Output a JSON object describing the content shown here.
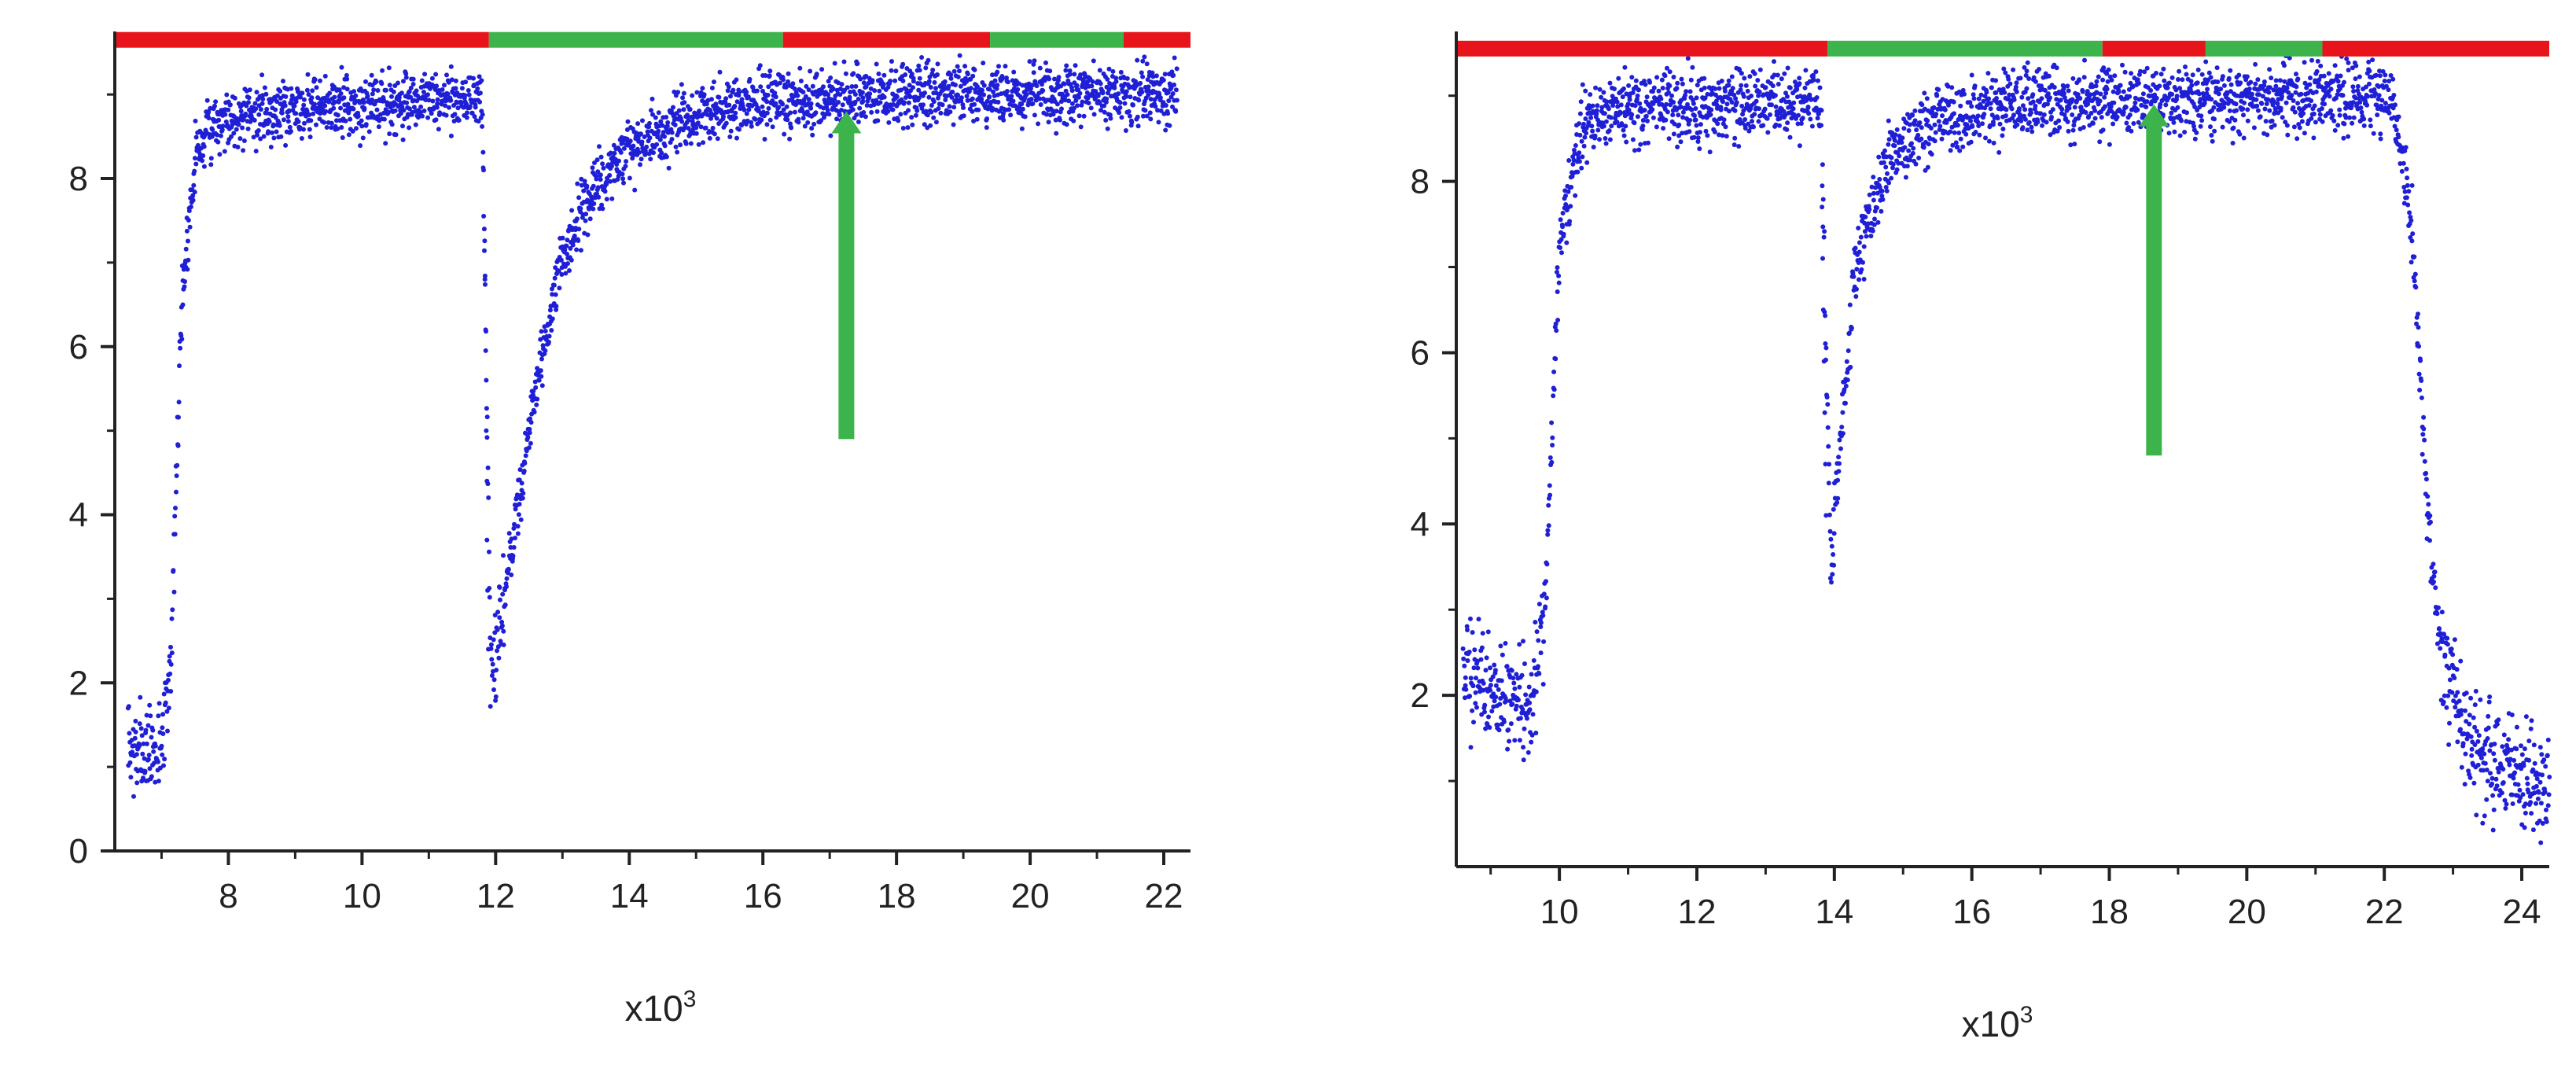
{
  "colors": {
    "points": "#1f1fd6",
    "red": "#e8141c",
    "green": "#3cb44b",
    "axis": "#222222"
  },
  "chart_data": [
    {
      "type": "scatter",
      "title": "",
      "xlabel": "x10",
      "xlabel_exponent": "3",
      "ylabel": "",
      "xlim": [
        6.3,
        22.4
      ],
      "ylim": [
        0,
        9.75
      ],
      "xticks": [
        8,
        10,
        12,
        14,
        16,
        18,
        20,
        22
      ],
      "yticks": [
        0,
        2,
        4,
        6,
        8
      ],
      "grid": false,
      "legend": "none",
      "series_shape": [
        [
          6.5,
          1.15
        ],
        [
          7.0,
          1.2
        ],
        [
          7.15,
          2.5
        ],
        [
          7.3,
          6.5
        ],
        [
          7.5,
          8.3
        ],
        [
          7.8,
          8.7
        ],
        [
          9.0,
          8.85
        ],
        [
          11.8,
          8.95
        ],
        [
          11.93,
          1.9
        ],
        [
          12.5,
          5.0
        ],
        [
          13.0,
          7.1
        ],
        [
          13.5,
          7.9
        ],
        [
          14.0,
          8.35
        ],
        [
          15.0,
          8.75
        ],
        [
          16.0,
          8.9
        ],
        [
          18.0,
          9.0
        ],
        [
          22.2,
          9.0
        ]
      ],
      "series_noise": 0.18,
      "drop_points": [
        [
          11.82,
          8.1
        ],
        [
          11.83,
          7.4
        ],
        [
          11.84,
          6.8
        ],
        [
          11.85,
          6.2
        ],
        [
          11.86,
          5.6
        ],
        [
          11.86,
          5.0
        ],
        [
          11.87,
          4.4
        ],
        [
          11.87,
          3.7
        ],
        [
          11.88,
          3.1
        ],
        [
          11.89,
          2.4
        ]
      ],
      "condition_bar": {
        "y": 9.65,
        "segments": [
          {
            "from": 6.3,
            "to": 11.9,
            "state": "red"
          },
          {
            "from": 11.9,
            "to": 16.3,
            "state": "green"
          },
          {
            "from": 16.3,
            "to": 19.4,
            "state": "red"
          },
          {
            "from": 19.4,
            "to": 21.4,
            "state": "green"
          },
          {
            "from": 21.4,
            "to": 22.4,
            "state": "red"
          }
        ]
      },
      "arrow": {
        "x": 17.25,
        "y_tail": 4.9,
        "y_head": 8.8
      }
    },
    {
      "type": "scatter",
      "title": "",
      "xlabel": "x10",
      "xlabel_exponent": "3",
      "ylabel": "",
      "xlim": [
        8.5,
        24.4
      ],
      "ylim": [
        0,
        9.75
      ],
      "xticks": [
        10,
        12,
        14,
        16,
        18,
        20,
        22,
        24
      ],
      "yticks": [
        2,
        4,
        6,
        8
      ],
      "grid": false,
      "legend": "none",
      "series_shape": [
        [
          8.6,
          2.3
        ],
        [
          9.0,
          2.0
        ],
        [
          9.6,
          1.95
        ],
        [
          9.8,
          3.2
        ],
        [
          10.0,
          7.2
        ],
        [
          10.3,
          8.55
        ],
        [
          10.8,
          8.85
        ],
        [
          13.8,
          8.95
        ],
        [
          13.95,
          3.5
        ],
        [
          14.3,
          7.0
        ],
        [
          14.8,
          8.3
        ],
        [
          15.5,
          8.75
        ],
        [
          16.5,
          8.9
        ],
        [
          22.1,
          9.0
        ],
        [
          22.4,
          7.5
        ],
        [
          22.6,
          4.5
        ],
        [
          22.8,
          2.6
        ],
        [
          23.2,
          1.5
        ],
        [
          23.7,
          1.15
        ],
        [
          24.4,
          0.9
        ]
      ],
      "series_noise": 0.2,
      "drop_points": [
        [
          13.82,
          7.7
        ],
        [
          13.83,
          7.1
        ],
        [
          13.84,
          6.5
        ],
        [
          13.85,
          5.9
        ],
        [
          13.86,
          5.3
        ],
        [
          13.87,
          4.7
        ],
        [
          13.88,
          4.1
        ]
      ],
      "condition_bar": {
        "y": 9.55,
        "segments": [
          {
            "from": 8.5,
            "to": 13.9,
            "state": "red"
          },
          {
            "from": 13.9,
            "to": 17.9,
            "state": "green"
          },
          {
            "from": 17.9,
            "to": 19.4,
            "state": "red"
          },
          {
            "from": 19.4,
            "to": 21.1,
            "state": "green"
          },
          {
            "from": 21.1,
            "to": 24.4,
            "state": "red"
          }
        ]
      },
      "arrow": {
        "x": 18.65,
        "y_tail": 4.8,
        "y_head": 8.9
      }
    }
  ]
}
